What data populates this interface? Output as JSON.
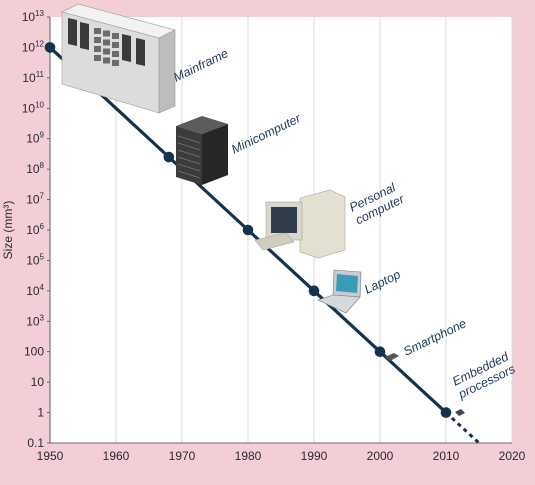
{
  "chart_data": {
    "type": "scatter",
    "title": "",
    "xlabel": "",
    "ylabel": "Size (mm³)",
    "xlim": [
      1950,
      2020
    ],
    "ylim": [
      0.1,
      10000000000000
    ],
    "yscale": "log",
    "grid": "vertical",
    "x_ticks": [
      "1950",
      "1960",
      "1970",
      "1980",
      "1990",
      "2000",
      "2010",
      "2020"
    ],
    "y_ticks": [
      {
        "value": 0.1,
        "label": "0.1"
      },
      {
        "value": 1,
        "label": "1"
      },
      {
        "value": 10,
        "label": "10"
      },
      {
        "value": 100,
        "label": "100"
      },
      {
        "value": 1000,
        "label": "10",
        "sup": "3"
      },
      {
        "value": 10000,
        "label": "10",
        "sup": "4"
      },
      {
        "value": 100000,
        "label": "10",
        "sup": "5"
      },
      {
        "value": 1000000,
        "label": "10",
        "sup": "6"
      },
      {
        "value": 10000000,
        "label": "10",
        "sup": "7"
      },
      {
        "value": 100000000,
        "label": "10",
        "sup": "8"
      },
      {
        "value": 1000000000,
        "label": "10",
        "sup": "9"
      },
      {
        "value": 10000000000,
        "label": "10",
        "sup": "10"
      },
      {
        "value": 100000000000,
        "label": "10",
        "sup": "11"
      },
      {
        "value": 1000000000000,
        "label": "10",
        "sup": "12"
      },
      {
        "value": 10000000000000,
        "label": "10",
        "sup": "13"
      }
    ],
    "points": [
      {
        "x": 1950,
        "y": 1000000000000,
        "label": "Mainframe"
      },
      {
        "x": 1968,
        "y": 250000000,
        "label": "Minicomputer"
      },
      {
        "x": 1980,
        "y": 1000000,
        "label": "Personal computer"
      },
      {
        "x": 1990,
        "y": 10000,
        "label": "Laptop"
      },
      {
        "x": 2000,
        "y": 100,
        "label": "Smartphone"
      },
      {
        "x": 2010,
        "y": 1,
        "label": "Embedded processors"
      }
    ],
    "trend_extension": {
      "x": [
        2010,
        2015
      ],
      "y": [
        1,
        0.1
      ]
    },
    "colors": {
      "line": "#13324f",
      "background": "#ffffff",
      "frame": "#f3cfd5",
      "grid": "#cfd3d8",
      "label": "#1d3a5c"
    }
  }
}
